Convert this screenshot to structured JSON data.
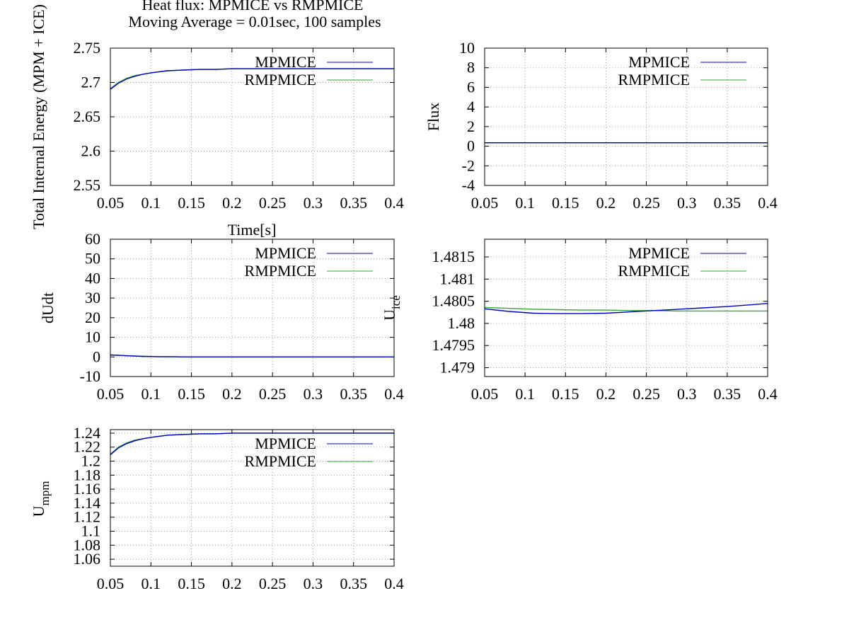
{
  "title_line1": "Heat flux: MPMICE vs RMPMICE",
  "title_line2": "Moving Average = 0.01sec, 100 samples",
  "chart_data": [
    {
      "type": "line",
      "id": "total-internal-energy",
      "ylabel": "Total Internal Energy (MPM + ICE)",
      "xlabel": "Time[s]",
      "xlim": [
        0.05,
        0.4
      ],
      "ylim": [
        2.55,
        2.75
      ],
      "xticks": [
        "0.05",
        "0.1",
        "0.15",
        "0.2",
        "0.25",
        "0.3",
        "0.35",
        "0.4"
      ],
      "yticks": [
        "2.55",
        "2.6",
        "2.65",
        "2.7",
        "2.75"
      ],
      "grid": true,
      "legend": "top-right",
      "x": [
        0.05,
        0.06,
        0.07,
        0.08,
        0.09,
        0.1,
        0.12,
        0.14,
        0.16,
        0.18,
        0.2,
        0.25,
        0.3,
        0.35,
        0.4
      ],
      "series": [
        {
          "name": "MPMICE",
          "color": "#0000cc",
          "values": [
            2.69,
            2.699,
            2.705,
            2.709,
            2.712,
            2.714,
            2.717,
            2.718,
            2.719,
            2.719,
            2.72,
            2.72,
            2.72,
            2.72,
            2.72
          ]
        },
        {
          "name": "RMPMICE",
          "color": "#33aa33",
          "values": [
            2.691,
            2.7,
            2.706,
            2.71,
            2.712,
            2.714,
            2.717,
            2.718,
            2.719,
            2.719,
            2.72,
            2.72,
            2.72,
            2.72,
            2.72
          ]
        }
      ]
    },
    {
      "type": "line",
      "id": "flux",
      "ylabel": "Flux",
      "xlabel": "",
      "xlim": [
        0.05,
        0.4
      ],
      "ylim": [
        -4,
        10
      ],
      "xticks": [
        "0.05",
        "0.1",
        "0.15",
        "0.2",
        "0.25",
        "0.3",
        "0.35",
        "0.4"
      ],
      "yticks": [
        "-4",
        "-2",
        "0",
        "2",
        "4",
        "6",
        "8",
        "10"
      ],
      "grid": true,
      "legend": "top-right",
      "x": [
        0.05,
        0.1,
        0.15,
        0.2,
        0.25,
        0.3,
        0.35,
        0.4
      ],
      "series": [
        {
          "name": "MPMICE",
          "color": "#0000cc",
          "values": [
            0.35,
            0.35,
            0.35,
            0.35,
            0.35,
            0.35,
            0.35,
            0.35
          ]
        },
        {
          "name": "RMPMICE",
          "color": "#33aa33",
          "values": [
            0.35,
            0.35,
            0.35,
            0.35,
            0.35,
            0.35,
            0.35,
            0.35
          ]
        }
      ]
    },
    {
      "type": "line",
      "id": "dudt",
      "ylabel": "dUdt",
      "xlabel": "",
      "xlim": [
        0.05,
        0.4
      ],
      "ylim": [
        -10,
        60
      ],
      "xticks": [
        "0.05",
        "0.1",
        "0.15",
        "0.2",
        "0.25",
        "0.3",
        "0.35",
        "0.4"
      ],
      "yticks": [
        "-10",
        "0",
        "10",
        "20",
        "30",
        "40",
        "50",
        "60"
      ],
      "grid": true,
      "legend": "top-right",
      "x": [
        0.05,
        0.07,
        0.09,
        0.11,
        0.13,
        0.15,
        0.2,
        0.25,
        0.3,
        0.35,
        0.4
      ],
      "series": [
        {
          "name": "MPMICE",
          "color": "#0000cc",
          "values": [
            1.0,
            0.6,
            0.3,
            0.15,
            0.05,
            0.0,
            0.0,
            0.0,
            0.0,
            0.0,
            0.0
          ]
        },
        {
          "name": "RMPMICE",
          "color": "#33aa33",
          "values": [
            1.0,
            0.6,
            0.3,
            0.15,
            0.05,
            0.0,
            0.0,
            0.0,
            0.0,
            0.0,
            0.0
          ]
        }
      ]
    },
    {
      "type": "line",
      "id": "u-ice",
      "ylabel": "U",
      "ylabel_sub": "ice",
      "xlabel": "",
      "xlim": [
        0.05,
        0.4
      ],
      "ylim": [
        1.4788,
        1.4819
      ],
      "xticks": [
        "0.05",
        "0.1",
        "0.15",
        "0.2",
        "0.25",
        "0.3",
        "0.35",
        "0.4"
      ],
      "yticks": [
        "1.479",
        "1.4795",
        "1.48",
        "1.4805",
        "1.481",
        "1.4815"
      ],
      "grid": true,
      "legend": "top-right",
      "x": [
        0.05,
        0.08,
        0.11,
        0.14,
        0.17,
        0.2,
        0.23,
        0.26,
        0.29,
        0.32,
        0.35,
        0.38,
        0.4
      ],
      "series": [
        {
          "name": "MPMICE",
          "color": "#0000cc",
          "values": [
            1.48033,
            1.48027,
            1.48023,
            1.48022,
            1.48022,
            1.48023,
            1.48026,
            1.48029,
            1.48032,
            1.48035,
            1.48038,
            1.48042,
            1.48045
          ]
        },
        {
          "name": "RMPMICE",
          "color": "#33aa33",
          "values": [
            1.48036,
            1.48034,
            1.48032,
            1.48031,
            1.4803,
            1.4803,
            1.48029,
            1.48029,
            1.48028,
            1.48028,
            1.48028,
            1.48028,
            1.48028
          ]
        }
      ]
    },
    {
      "type": "line",
      "id": "u-mpm",
      "ylabel": "U",
      "ylabel_sub": "mpm",
      "xlabel": "",
      "xlim": [
        0.05,
        0.4
      ],
      "ylim": [
        1.05,
        1.245
      ],
      "xticks": [
        "0.05",
        "0.1",
        "0.15",
        "0.2",
        "0.25",
        "0.3",
        "0.35",
        "0.4"
      ],
      "yticks": [
        "1.06",
        "1.08",
        "1.1",
        "1.12",
        "1.14",
        "1.16",
        "1.18",
        "1.2",
        "1.22",
        "1.24"
      ],
      "grid": true,
      "legend": "top-right",
      "x": [
        0.05,
        0.06,
        0.07,
        0.08,
        0.09,
        0.1,
        0.12,
        0.14,
        0.16,
        0.18,
        0.2,
        0.25,
        0.3,
        0.35,
        0.4
      ],
      "series": [
        {
          "name": "MPMICE",
          "color": "#0000cc",
          "values": [
            1.209,
            1.219,
            1.225,
            1.229,
            1.232,
            1.234,
            1.237,
            1.238,
            1.239,
            1.239,
            1.24,
            1.24,
            1.24,
            1.24,
            1.24
          ]
        },
        {
          "name": "RMPMICE",
          "color": "#33aa33",
          "values": [
            1.21,
            1.22,
            1.226,
            1.23,
            1.232,
            1.234,
            1.237,
            1.238,
            1.239,
            1.239,
            1.24,
            1.24,
            1.24,
            1.24,
            1.24
          ]
        }
      ]
    }
  ]
}
